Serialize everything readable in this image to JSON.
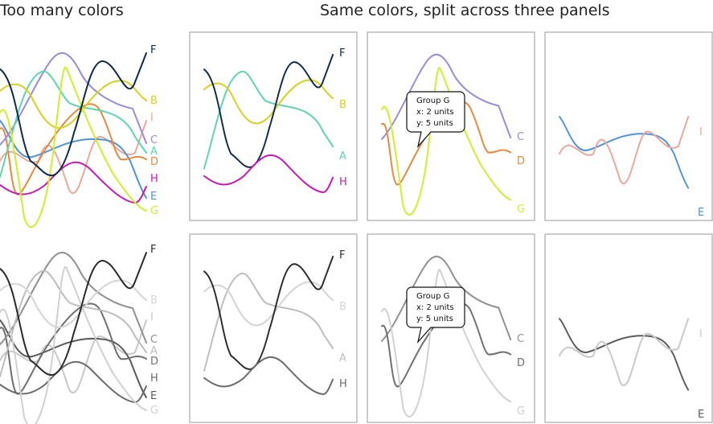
{
  "titles": {
    "left": "Too many colors",
    "right": "Same colors, split across three panels"
  },
  "colors": {
    "A": "#5fd3b0",
    "B": "#d9cf1e",
    "C": "#9b8ad6",
    "D": "#e4893e",
    "E": "#4f92d8",
    "F": "#0e2a4a",
    "G": "#cfee2a",
    "H": "#c21ab4",
    "I": "#e8a89c"
  },
  "grays": {
    "A": "#bdbdbd",
    "B": "#d4d4d4",
    "C": "#909090",
    "D": "#6e6e6e",
    "E": "#5a5a5a",
    "F": "#2a2a2a",
    "G": "#d0d0d0",
    "H": "#6a6a6a",
    "I": "#c8c8c8"
  },
  "panels": {
    "p1": {
      "series": [
        "A",
        "B",
        "F",
        "H"
      ]
    },
    "p2": {
      "series": [
        "C",
        "D",
        "G"
      ]
    },
    "p3": {
      "series": [
        "E",
        "I"
      ]
    }
  },
  "series_labels": [
    "A",
    "B",
    "C",
    "D",
    "E",
    "F",
    "G",
    "H",
    "I"
  ],
  "tooltip": {
    "group": "Group G",
    "x": "x: 2 units",
    "y": "y: 5 units"
  }
}
